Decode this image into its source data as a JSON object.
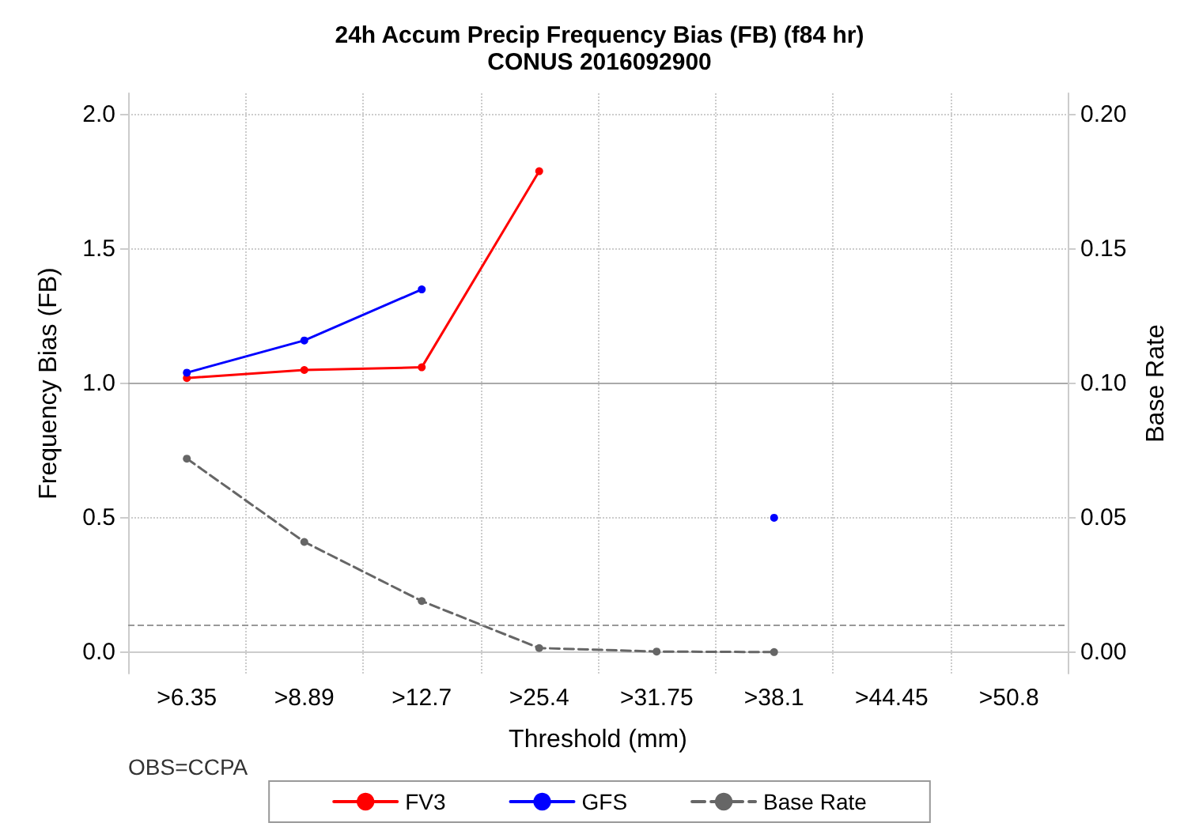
{
  "chart_data": {
    "type": "line",
    "title": "24h Accum Precip Frequency Bias (FB) (f84 hr)",
    "subtitle": "CONUS 2016092900",
    "xlabel": "Threshold (mm)",
    "ylabel": "Frequency Bias (FB)",
    "y2label": "Base Rate",
    "categories": [
      ">6.35",
      ">8.89",
      ">12.7",
      ">25.4",
      ">31.75",
      ">38.1",
      ">44.45",
      ">50.8"
    ],
    "series": [
      {
        "name": "FV3",
        "color": "#ff0000",
        "values": [
          1.02,
          1.05,
          1.06,
          1.79,
          null,
          null,
          null,
          null
        ]
      },
      {
        "name": "GFS",
        "color": "#0000ff",
        "values": [
          1.04,
          1.16,
          1.35,
          null,
          null,
          0.5,
          null,
          null
        ]
      },
      {
        "name": "Base Rate",
        "color": "#666666",
        "axis": "y2",
        "line_style": "dashed",
        "values": [
          0.072,
          0.041,
          0.019,
          0.0015,
          0.0002,
          0,
          null,
          null
        ]
      }
    ],
    "ylim": [
      -0.08,
      2.08
    ],
    "yticks": [
      {
        "value": 0,
        "label": "0.0"
      },
      0.5,
      {
        "value": 1,
        "label": "1.0"
      },
      1.5,
      {
        "value": 2,
        "label": "2.0"
      }
    ],
    "y2lim": [
      -0.008,
      0.208
    ],
    "y2ticks": [
      {
        "value": 0,
        "label": "0.00"
      },
      0.05,
      {
        "value": 0.1,
        "label": "0.10"
      },
      0.15,
      {
        "value": 0.2,
        "label": "0.20"
      }
    ],
    "ref_lines": [
      {
        "axis": "y",
        "value": 1,
        "color": "#aaaaaa",
        "line_style": "solid"
      },
      {
        "axis": "y2",
        "value": 0.01,
        "color": "#999999",
        "line_style": "dashed"
      }
    ],
    "annotations": [
      "OBS=CCPA"
    ],
    "grid": true,
    "legend": "bottom",
    "marker": "circle",
    "line_style": "solid"
  }
}
